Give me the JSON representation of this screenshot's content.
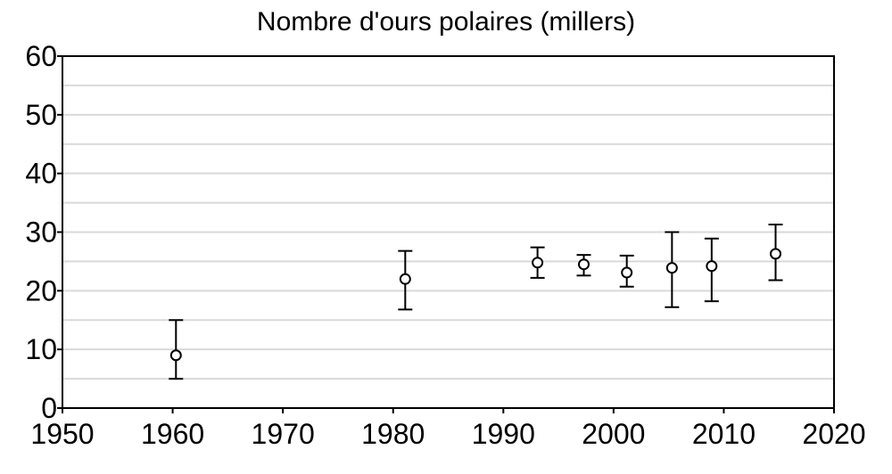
{
  "chart_data": {
    "type": "scatter",
    "title": "Nombre d'ours polaires (millers)",
    "xlabel": "",
    "ylabel": "",
    "xlim": [
      1950,
      2020
    ],
    "ylim": [
      0,
      60
    ],
    "x_ticks": [
      1950,
      1960,
      1970,
      1980,
      1990,
      2000,
      2010,
      2020
    ],
    "y_ticks": [
      0,
      10,
      20,
      30,
      40,
      50,
      60
    ],
    "gridlines_y": [
      5,
      10,
      15,
      20,
      25,
      30,
      35,
      40,
      45,
      50,
      55
    ],
    "grid": true,
    "points": [
      {
        "x": 1960.3,
        "y": 9.0,
        "low": 5.0,
        "high": 15.0
      },
      {
        "x": 1981.1,
        "y": 22.0,
        "low": 16.8,
        "high": 26.8
      },
      {
        "x": 1993.1,
        "y": 24.8,
        "low": 22.2,
        "high": 27.4
      },
      {
        "x": 1997.3,
        "y": 24.5,
        "low": 22.6,
        "high": 26.1
      },
      {
        "x": 2001.2,
        "y": 23.1,
        "low": 20.7,
        "high": 26.0
      },
      {
        "x": 2005.3,
        "y": 23.9,
        "low": 17.2,
        "high": 30.0
      },
      {
        "x": 2008.9,
        "y": 24.2,
        "low": 18.2,
        "high": 28.9
      },
      {
        "x": 2014.7,
        "y": 26.3,
        "low": 21.8,
        "high": 31.3
      }
    ]
  }
}
